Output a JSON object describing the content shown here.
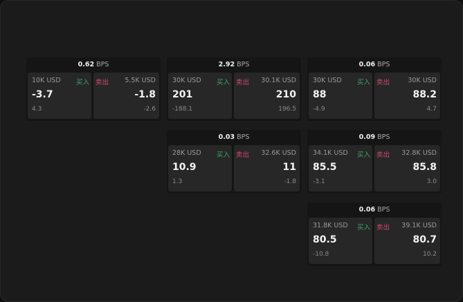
{
  "colors": {
    "buy": "#3fa66a",
    "sell": "#d5486e"
  },
  "buy_label": "买入",
  "sell_label": "卖出",
  "unit": "BPS",
  "cards": [
    {
      "spread": "0.62",
      "buy": {
        "amount": "10K USD",
        "price": "-3.7",
        "change": "4.3"
      },
      "sell": {
        "amount": "5.5K USD",
        "price": "-1.8",
        "change": "-2.6"
      }
    },
    {
      "spread": "2.92",
      "buy": {
        "amount": "30K USD",
        "price": "201",
        "change": "-188.1"
      },
      "sell": {
        "amount": "30.1K USD",
        "price": "210",
        "change": "196.5"
      }
    },
    {
      "spread": "0.06",
      "buy": {
        "amount": "30K USD",
        "price": "88",
        "change": "-4.9"
      },
      "sell": {
        "amount": "30K USD",
        "price": "88.2",
        "change": "4.7"
      }
    },
    {
      "spread": "0.03",
      "buy": {
        "amount": "28K USD",
        "price": "10.9",
        "change": "1.3"
      },
      "sell": {
        "amount": "32.6K USD",
        "price": "11",
        "change": "-1.8"
      }
    },
    {
      "spread": "0.09",
      "buy": {
        "amount": "34.1K USD",
        "price": "85.5",
        "change": "-3.1"
      },
      "sell": {
        "amount": "32.8K USD",
        "price": "85.8",
        "change": "3.0"
      }
    },
    {
      "spread": "0.06",
      "buy": {
        "amount": "31.8K USD",
        "price": "80.5",
        "change": "-10.8"
      },
      "sell": {
        "amount": "39.1K USD",
        "price": "80.7",
        "change": "10.2"
      }
    }
  ]
}
